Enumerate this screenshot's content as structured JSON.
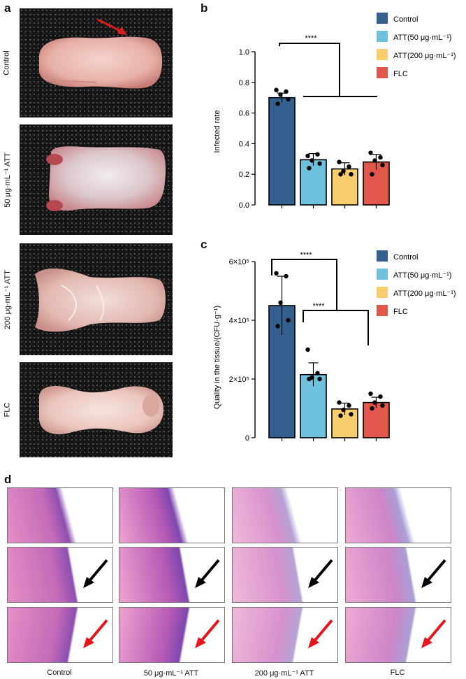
{
  "panels": {
    "a": "a",
    "b": "b",
    "c": "c",
    "d": "d"
  },
  "panel_a": {
    "rows": [
      "Control",
      "50 μg·mL⁻¹ ATT",
      "200 μg·mL⁻¹ ATT",
      "FLC"
    ]
  },
  "legend": {
    "entries": [
      "Control",
      "ATT(50 μg·mL⁻¹)",
      "ATT(200 μg·mL⁻¹)",
      "FLC"
    ],
    "colors": [
      "#34608f",
      "#6ec1dc",
      "#f8cd6e",
      "#e2574c"
    ]
  },
  "panel_b": {
    "ylabel": "Infected rate",
    "significance": "****"
  },
  "panel_c": {
    "ylabel": "Quality in the tissue/(CFU·g⁻¹)",
    "significance_top": "****",
    "significance_inner": "****"
  },
  "panel_d": {
    "columns": [
      "Control",
      "50 μg·mL⁻¹ ATT",
      "200 μg·mL⁻¹ ATT",
      "FLC"
    ]
  },
  "chart_data": [
    {
      "type": "bar",
      "panel": "b",
      "categories": [
        "Control",
        "ATT(50 μg·mL⁻¹)",
        "ATT(200 μg·mL⁻¹)",
        "FLC"
      ],
      "values": [
        0.7,
        0.295,
        0.235,
        0.28
      ],
      "errors": [
        0.03,
        0.04,
        0.04,
        0.05
      ],
      "points": [
        [
          0.75,
          0.74,
          0.72,
          0.69,
          0.66
        ],
        [
          0.32,
          0.33,
          0.29,
          0.27,
          0.24
        ],
        [
          0.28,
          0.25,
          0.22,
          0.2,
          0.2
        ],
        [
          0.34,
          0.31,
          0.29,
          0.26,
          0.2
        ]
      ],
      "ylabel": "Infected rate",
      "ylim": [
        0,
        1.0
      ],
      "yticks": [
        0,
        0.2,
        0.4,
        0.6,
        0.8,
        1.0
      ],
      "ytick_labels": [
        "0.0",
        "0.2",
        "0.4",
        "0.6",
        "0.8",
        "1.0"
      ],
      "legend": "top-right"
    },
    {
      "type": "bar",
      "panel": "c",
      "categories": [
        "Control",
        "ATT(50 μg·mL⁻¹)",
        "ATT(200 μg·mL⁻¹)",
        "FLC"
      ],
      "values": [
        450000,
        215000,
        98000,
        120000
      ],
      "errors": [
        100000,
        40000,
        20000,
        18000
      ],
      "points": [
        [
          560000,
          550000,
          460000,
          400000,
          380000
        ],
        [
          300000,
          220000,
          205000,
          200000,
          200000
        ],
        [
          120000,
          110000,
          95000,
          80000,
          75000
        ],
        [
          150000,
          140000,
          120000,
          110000,
          100000
        ]
      ],
      "ylabel": "Quality in the tissue/(CFU·g⁻¹)",
      "ylim": [
        0,
        600000
      ],
      "yticks": [
        0,
        200000,
        400000,
        600000
      ],
      "ytick_labels": [
        "0",
        "2×10⁵",
        "4×10⁵",
        "6×10⁵"
      ],
      "legend": "top-right"
    }
  ]
}
